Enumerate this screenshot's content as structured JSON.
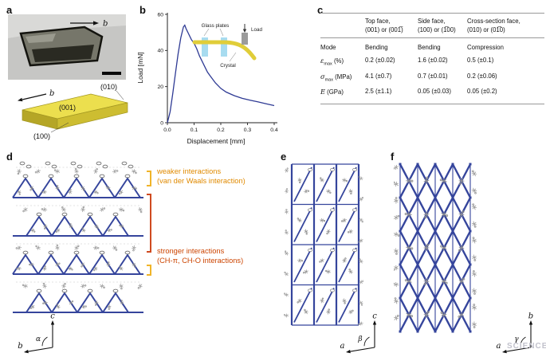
{
  "watermark": "SCIENCE",
  "colors": {
    "curve": "#2e3a94",
    "structure": "#35459c",
    "crystal_top": "#ecdf4e",
    "crystal_front": "#cdbd31",
    "crystal_side": "#b5a626",
    "glass_plate": "#a8dcf0",
    "load_block": "#9b9b9b",
    "weaker_text": "#e08a00",
    "weaker_bracket": "#f0b429",
    "stronger_text": "#cc4400",
    "stronger_bracket": "#cf4a20"
  },
  "panel_a": {
    "label": "a",
    "photo_axis": "b",
    "schematic_axis": "b",
    "face_top_right": "(010)",
    "face_top": "(001)",
    "face_front": "(100)"
  },
  "panel_b": {
    "label": "b",
    "ylabel": "Load [mN]",
    "xlabel": "Displacement [mm]",
    "inset": {
      "glass": "Glass plates",
      "load": "Load",
      "crystal": "Crystal"
    }
  },
  "panel_c": {
    "label": "c",
    "headers": [
      {
        "l1": "Top face,",
        "l2": "(001) or (001̅)"
      },
      {
        "l1": "Side face,",
        "l2": "(100) or (1̅00)"
      },
      {
        "l1": "Cross-section face,",
        "l2": "(010) or (01̅0)"
      }
    ],
    "rows": [
      {
        "sym": "Mode",
        "sub": "",
        "unit": "",
        "values": [
          "Bending",
          "Bending",
          "Compression"
        ]
      },
      {
        "sym": "ε",
        "sub": "max",
        "unit": " (%)",
        "values": [
          "0.2 (±0.02)",
          "1.6 (±0.02)",
          "0.5 (±0.1)"
        ]
      },
      {
        "sym": "σ",
        "sub": "max",
        "unit": " (MPa)",
        "values": [
          "4.1 (±0.7)",
          "0.7 (±0.01)",
          "0.2 (±0.06)"
        ]
      },
      {
        "sym": "E",
        "sub": "",
        "unit": " (GPa)",
        "values": [
          "2.5 (±1.1)",
          "0.05 (±0.03)",
          "0.05 (±0.2)"
        ]
      }
    ]
  },
  "panel_d": {
    "label": "d",
    "weaker_line1": "weaker interactions",
    "weaker_line2": "(van der Waals interaction)",
    "stronger_line1": "stronger interactions",
    "stronger_line2": "(CH-π, CH-O interactions)",
    "axis_v": "c",
    "axis_h": "b",
    "angle": "α"
  },
  "panel_e": {
    "label": "e",
    "axis_v": "c",
    "axis_h": "a",
    "angle": "β"
  },
  "panel_f": {
    "label": "f",
    "axis_v": "b",
    "axis_h": "a",
    "angle": "γ"
  },
  "chart_data": {
    "type": "line",
    "title": "",
    "xlabel": "Displacement [mm]",
    "ylabel": "Load [mN]",
    "xlim": [
      0,
      0.4
    ],
    "ylim": [
      0,
      60
    ],
    "x_ticks": [
      0.0,
      0.1,
      0.2,
      0.3,
      0.4
    ],
    "y_ticks": [
      0,
      20,
      40,
      60
    ],
    "x": [
      0,
      0.01,
      0.02,
      0.03,
      0.04,
      0.05,
      0.06,
      0.065,
      0.07,
      0.08,
      0.09,
      0.1,
      0.11,
      0.12,
      0.13,
      0.14,
      0.15,
      0.16,
      0.18,
      0.2,
      0.22,
      0.25,
      0.28,
      0.31,
      0.34,
      0.37,
      0.4
    ],
    "y": [
      0,
      6,
      16,
      27,
      38,
      47,
      53,
      54,
      52,
      49,
      46,
      44,
      41,
      37,
      34,
      31,
      28,
      26,
      22,
      19,
      17,
      15,
      13.5,
      12.5,
      11.5,
      10.5,
      9.5
    ]
  }
}
